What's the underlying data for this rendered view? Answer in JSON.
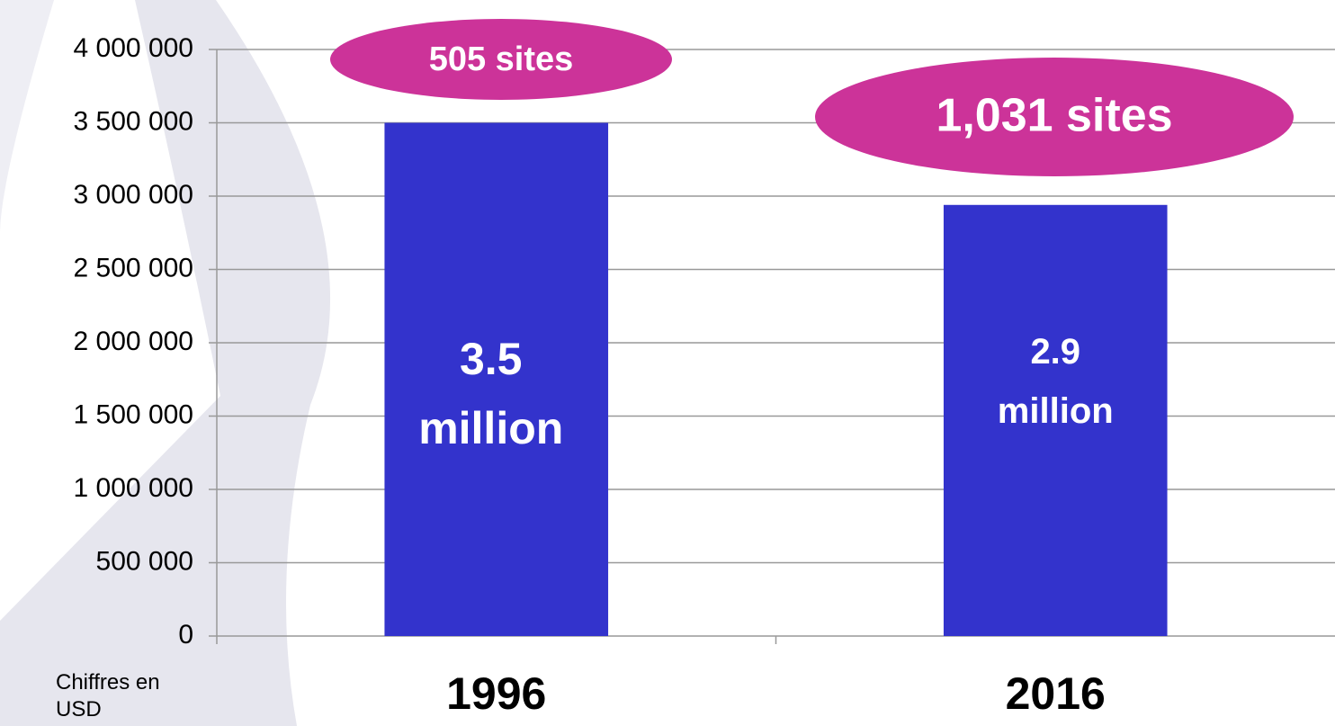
{
  "chart_data": {
    "type": "bar",
    "ylabel": "Chiffres en USD",
    "categories": [
      "1996",
      "2016"
    ],
    "values": [
      3500000,
      2940000
    ],
    "value_labels": [
      "3.5 million",
      "2.9 million"
    ],
    "color": "#3333cc",
    "annotations": [
      "505 sites",
      "1,031 sites"
    ],
    "annotation_color": "#cc3399",
    "ylim": [
      0,
      4000000
    ],
    "yticks": [
      0,
      {
        "value": 500000,
        "label": "500 000"
      },
      {
        "value": 1000000,
        "label": "1 000 000"
      },
      {
        "value": 1500000,
        "label": "1 500 000"
      },
      {
        "value": 2000000,
        "label": "2 000 000"
      },
      {
        "value": 2500000,
        "label": "2 500 000"
      },
      {
        "value": 3000000,
        "label": "3 000 000"
      },
      {
        "value": 3500000,
        "label": "3 500 000"
      },
      {
        "value": 4000000,
        "label": "4 000 000"
      }
    ],
    "grid": true
  }
}
